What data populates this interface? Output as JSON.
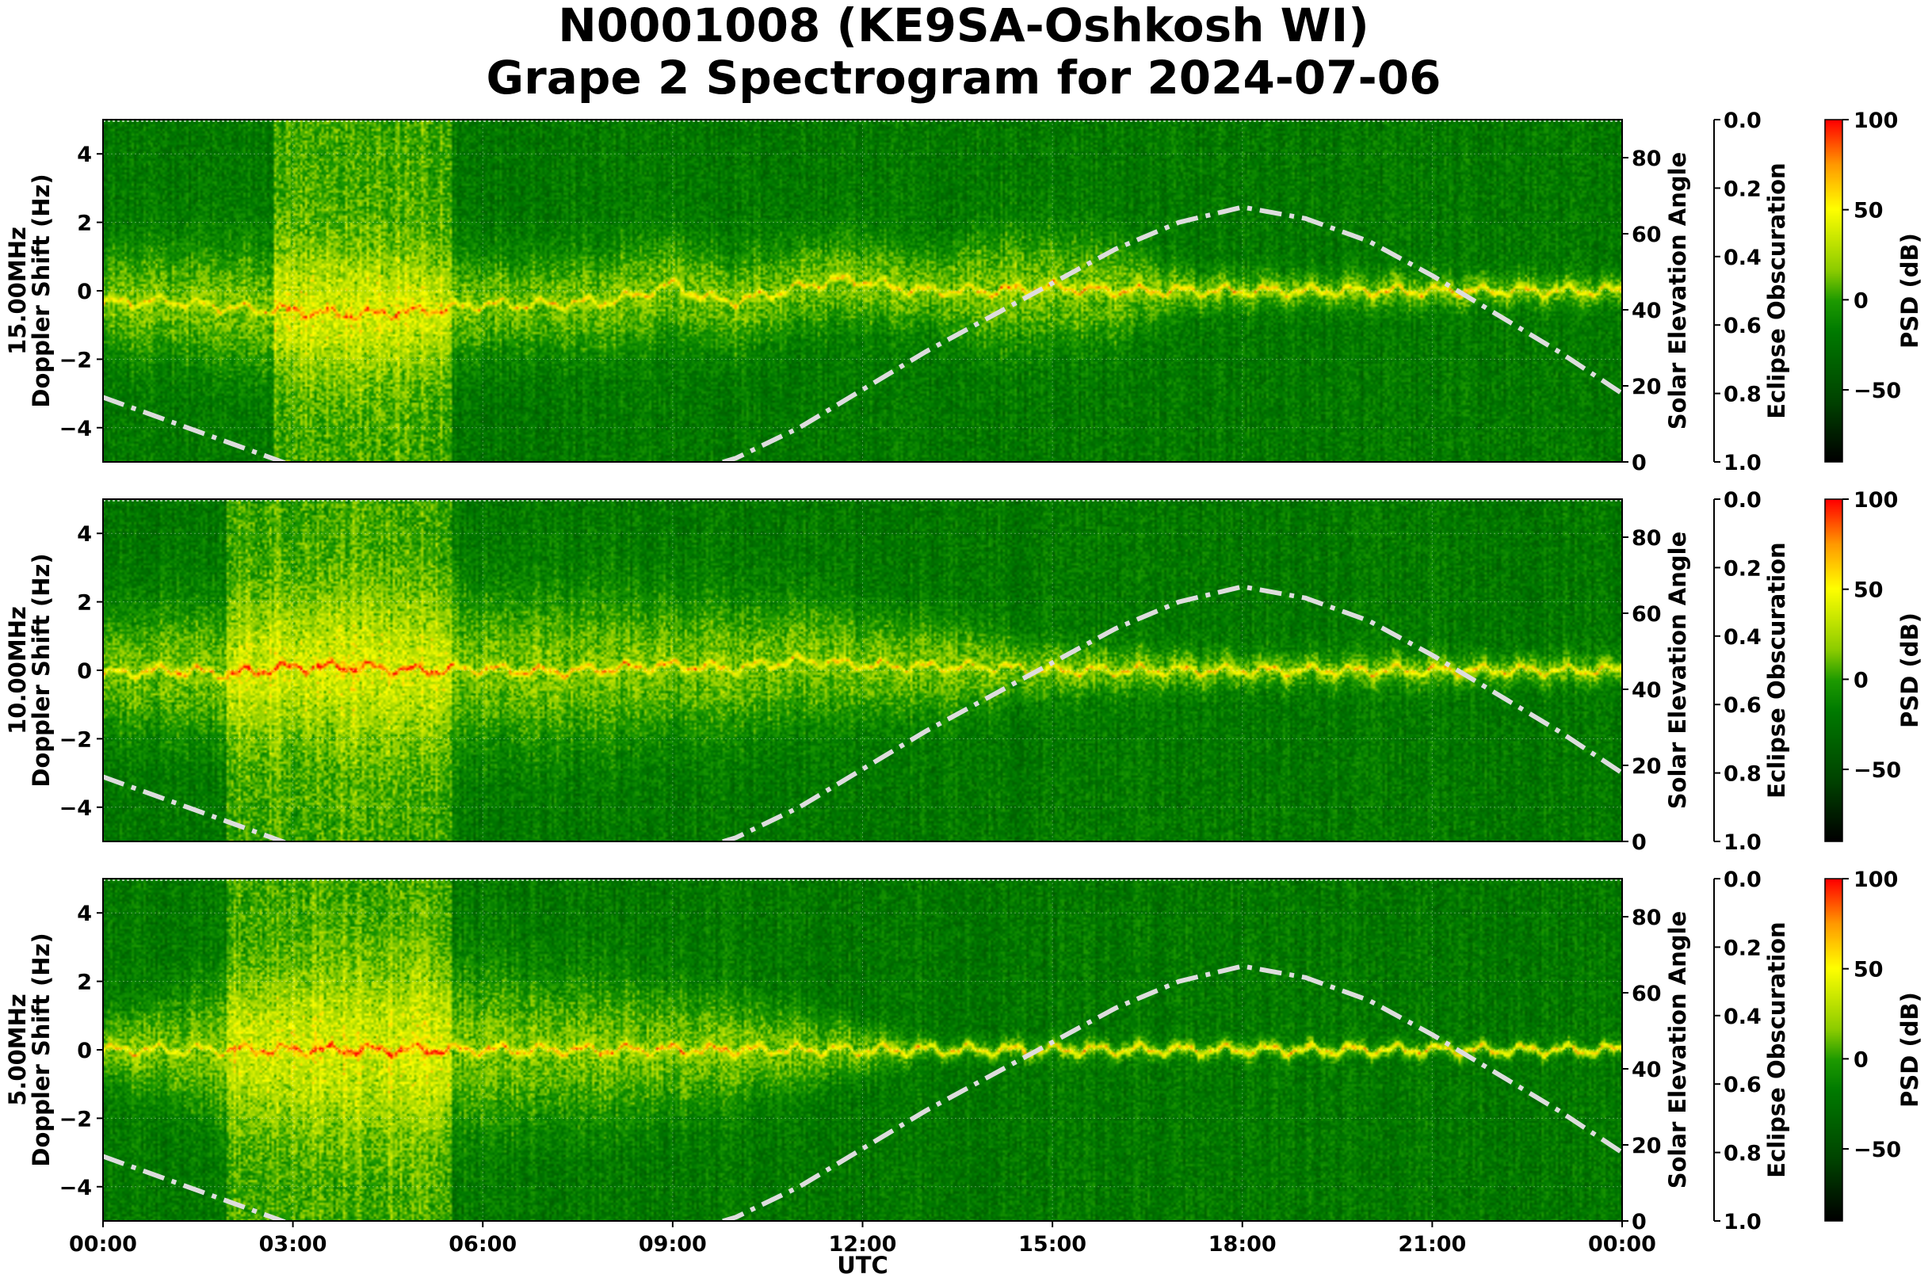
{
  "chart_data": {
    "type": "heatmap",
    "title": [
      "N0001008 (KE9SA-Oshkosh WI)",
      "Grape 2 Spectrogram for 2024-07-06"
    ],
    "xlabel": "UTC",
    "x_ticks": [
      "00:00",
      "03:00",
      "06:00",
      "09:00",
      "12:00",
      "15:00",
      "18:00",
      "21:00",
      "00:00"
    ],
    "xlim_hours": [
      0,
      24
    ],
    "ylabel": "Doppler Shift (Hz)",
    "ylim": [
      -5,
      5
    ],
    "y_ticks": [
      4,
      2,
      0,
      -2,
      -4
    ],
    "y_tick_labels": [
      "4",
      "2",
      "0",
      "−2",
      "−4"
    ],
    "right_axis_label": "Solar Elevation Angle",
    "right_axis_ylim": [
      0,
      90
    ],
    "right_axis_ticks": [
      80,
      60,
      40,
      20,
      0
    ],
    "eclipse_axis_label": "Eclipse Obscuration",
    "eclipse_axis_ylim": [
      1.0,
      0.0
    ],
    "eclipse_ticks": [
      "0.0",
      "0.2",
      "0.4",
      "0.6",
      "0.8",
      "1.0"
    ],
    "colorbar_label": "PSD (dB)",
    "colorbar_range": [
      -90,
      100
    ],
    "colorbar_ticks": [
      100,
      50,
      0,
      -50
    ],
    "colorbar_tick_labels": [
      "100",
      "50",
      "0",
      "−50"
    ],
    "colormap": [
      "#000000",
      "#004400",
      "#007a00",
      "#1d9a00",
      "#8ccc00",
      "#ffff00",
      "#ff9900",
      "#ff0000"
    ],
    "grid": true,
    "panels": [
      {
        "freq_label": "15.00MHz",
        "base_psd": -20,
        "carrier": [
          [
            0,
            -0.35
          ],
          [
            1,
            -0.3
          ],
          [
            2,
            -0.5
          ],
          [
            3,
            -0.6
          ],
          [
            4,
            -0.7
          ],
          [
            5,
            -0.6
          ],
          [
            6,
            -0.4
          ],
          [
            7,
            -0.4
          ],
          [
            8,
            -0.3
          ],
          [
            8.5,
            -0.1
          ],
          [
            9,
            0.2
          ],
          [
            9.5,
            -0.2
          ],
          [
            10,
            -0.3
          ],
          [
            10.5,
            -0.1
          ],
          [
            11,
            0.1
          ],
          [
            11.5,
            0.3
          ],
          [
            12,
            0.3
          ],
          [
            12.5,
            0.1
          ],
          [
            13,
            0
          ],
          [
            14,
            0
          ],
          [
            15,
            0.1
          ],
          [
            16,
            0
          ],
          [
            17,
            0
          ],
          [
            18,
            0
          ],
          [
            20,
            0
          ],
          [
            22,
            0
          ],
          [
            24,
            0
          ]
        ],
        "spread": [
          [
            0,
            1.0
          ],
          [
            4,
            1.4
          ],
          [
            6,
            1.0
          ],
          [
            9,
            1.0
          ],
          [
            11,
            0.9
          ],
          [
            12,
            0.9
          ],
          [
            13,
            0.7
          ],
          [
            14,
            1.2
          ],
          [
            16,
            1.0
          ],
          [
            17,
            0.4
          ],
          [
            19,
            0.35
          ],
          [
            24,
            0.3
          ]
        ],
        "bursts": [
          [
            2.7,
            5.5
          ]
        ],
        "hot_segments": [
          [
            14,
            16.6
          ]
        ]
      },
      {
        "freq_label": "10.00MHz",
        "base_psd": -20,
        "carrier": [
          [
            0,
            -0.1
          ],
          [
            1,
            0
          ],
          [
            2,
            -0.1
          ],
          [
            3,
            0.1
          ],
          [
            4,
            0.1
          ],
          [
            5,
            0
          ],
          [
            6,
            0.05
          ],
          [
            7,
            -0.05
          ],
          [
            8,
            0.05
          ],
          [
            9,
            0.15
          ],
          [
            10,
            0.05
          ],
          [
            11,
            0.3
          ],
          [
            12,
            0.15
          ],
          [
            13,
            0.1
          ],
          [
            14,
            0.1
          ],
          [
            15,
            0
          ],
          [
            18,
            0
          ],
          [
            24,
            0
          ]
        ],
        "spread": [
          [
            0,
            1.2
          ],
          [
            2,
            1.4
          ],
          [
            5,
            1.6
          ],
          [
            8,
            1.5
          ],
          [
            11,
            1.2
          ],
          [
            13,
            1.0
          ],
          [
            15,
            0.5
          ],
          [
            18,
            0.35
          ],
          [
            24,
            0.3
          ]
        ],
        "bursts": [
          [
            1.95,
            5.5
          ]
        ],
        "hot_segments": [
          [
            0.5,
            9.8
          ]
        ]
      },
      {
        "freq_label": "5.00MHz",
        "base_psd": -20,
        "carrier": [
          [
            0,
            0
          ],
          [
            3,
            0
          ],
          [
            6,
            0
          ],
          [
            9,
            0
          ],
          [
            12,
            0
          ],
          [
            24,
            0
          ]
        ],
        "spread": [
          [
            0,
            0.6
          ],
          [
            2,
            1.4
          ],
          [
            4,
            1.8
          ],
          [
            6,
            1.6
          ],
          [
            9,
            1.2
          ],
          [
            11,
            0.8
          ],
          [
            12,
            0.5
          ],
          [
            13,
            0.2
          ],
          [
            24,
            0.15
          ]
        ],
        "bursts": [
          [
            1.95,
            5.5
          ]
        ],
        "hot_segments": [
          [
            3,
            10.5
          ]
        ]
      }
    ],
    "solar_elevation": {
      "name": "Solar Elevation Angle",
      "color": "#dddddd",
      "x_hours": [
        0,
        1,
        2,
        3,
        4,
        5,
        6,
        7,
        8,
        9,
        10,
        10.5,
        11,
        12,
        13,
        14,
        15,
        16,
        17,
        18,
        19,
        20,
        21,
        22,
        23,
        24
      ],
      "values": [
        17,
        11,
        5,
        -1,
        -6,
        -10,
        -12,
        -11,
        -8,
        -4,
        1,
        5,
        9,
        19,
        29,
        38,
        47,
        56,
        63,
        67,
        64,
        58,
        49,
        39,
        29,
        18
      ]
    }
  }
}
